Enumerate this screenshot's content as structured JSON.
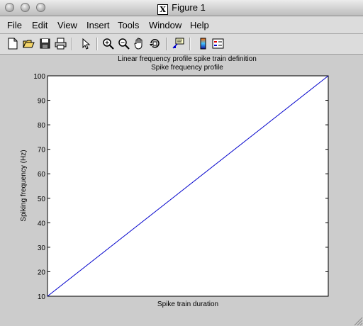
{
  "window": {
    "title": "Figure 1",
    "icon": "x11-icon"
  },
  "menubar": {
    "items": [
      {
        "label": "File"
      },
      {
        "label": "Edit"
      },
      {
        "label": "View"
      },
      {
        "label": "Insert"
      },
      {
        "label": "Tools"
      },
      {
        "label": "Window"
      },
      {
        "label": "Help"
      }
    ]
  },
  "toolbar": {
    "icons": [
      "new-figure-icon",
      "open-file-icon",
      "save-icon",
      "print-icon",
      "edit-plot-arrow-icon",
      "zoom-in-icon",
      "zoom-out-icon",
      "pan-hand-icon",
      "rotate-3d-icon",
      "data-cursor-icon",
      "colorbar-icon",
      "legend-icon"
    ]
  },
  "colors": {
    "line": "#0000cc",
    "plot_background": "#ffffff",
    "figure_background": "#cccccc"
  },
  "chart_data": {
    "type": "line",
    "title": "Linear frequency profile spike train definition",
    "subtitle": "Spike frequency profile",
    "xlabel": "Spike train duration",
    "ylabel": "Spiking frequency (Hz)",
    "ylim": [
      10,
      100
    ],
    "yticks": [
      "10",
      "20",
      "30",
      "40",
      "50",
      "60",
      "70",
      "80",
      "90",
      "100"
    ],
    "xticks": [],
    "grid": false,
    "series": [
      {
        "x": [
          0,
          1
        ],
        "values": [
          10,
          100
        ]
      }
    ]
  }
}
